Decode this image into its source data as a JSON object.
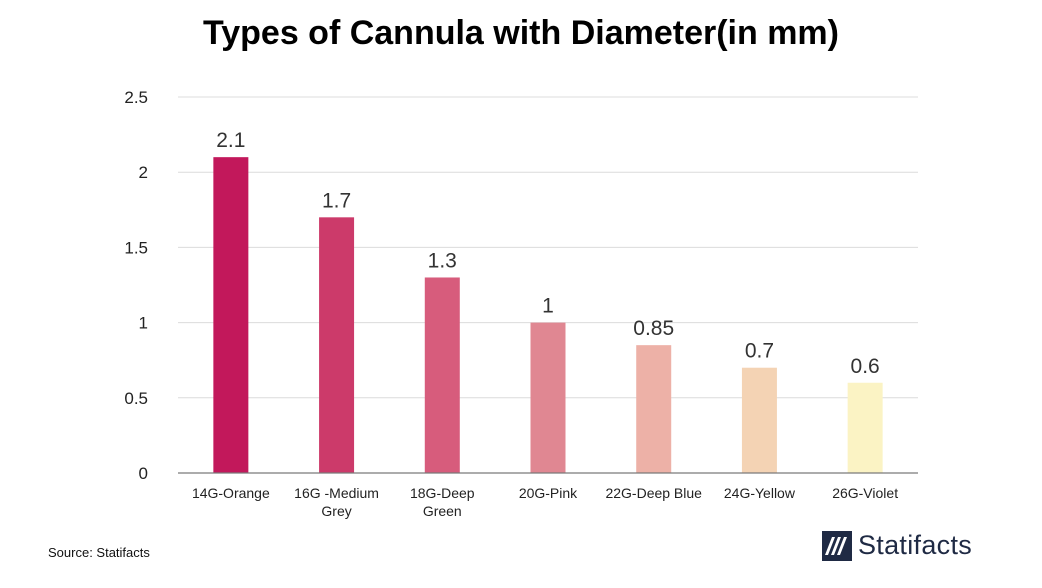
{
  "chart_data": {
    "type": "bar",
    "title": "Types of Cannula with Diameter(in mm)",
    "categories": [
      [
        "14G-Orange"
      ],
      [
        "16G -Medium",
        "Grey"
      ],
      [
        "18G-Deep",
        "Green"
      ],
      [
        "20G-Pink"
      ],
      [
        "22G-Deep Blue"
      ],
      [
        "24G-Yellow"
      ],
      [
        "26G-Violet"
      ]
    ],
    "values": [
      2.1,
      1.7,
      1.3,
      1,
      0.85,
      0.7,
      0.6
    ],
    "value_labels": [
      "2.1",
      "1.7",
      "1.3",
      "1",
      "0.85",
      "0.7",
      "0.6"
    ],
    "bar_colors": [
      "#c2185b",
      "#cc3a6a",
      "#d75c7c",
      "#e08792",
      "#edb1a7",
      "#f4d3b4",
      "#fbf3c4"
    ],
    "ylim": [
      0,
      2.5
    ],
    "yticks": [
      "0",
      "0.5",
      "1",
      "1.5",
      "2",
      "2.5"
    ],
    "ytick_values": [
      0,
      0.5,
      1,
      1.5,
      2,
      2.5
    ],
    "grid": true,
    "xlabel": "",
    "ylabel": ""
  },
  "footer": {
    "source": "Source: Statifacts",
    "brand": "Statifacts"
  },
  "colors": {
    "grid": "#dcdcdc",
    "axis": "#7a7a7a",
    "brand": "#1f2a44"
  }
}
